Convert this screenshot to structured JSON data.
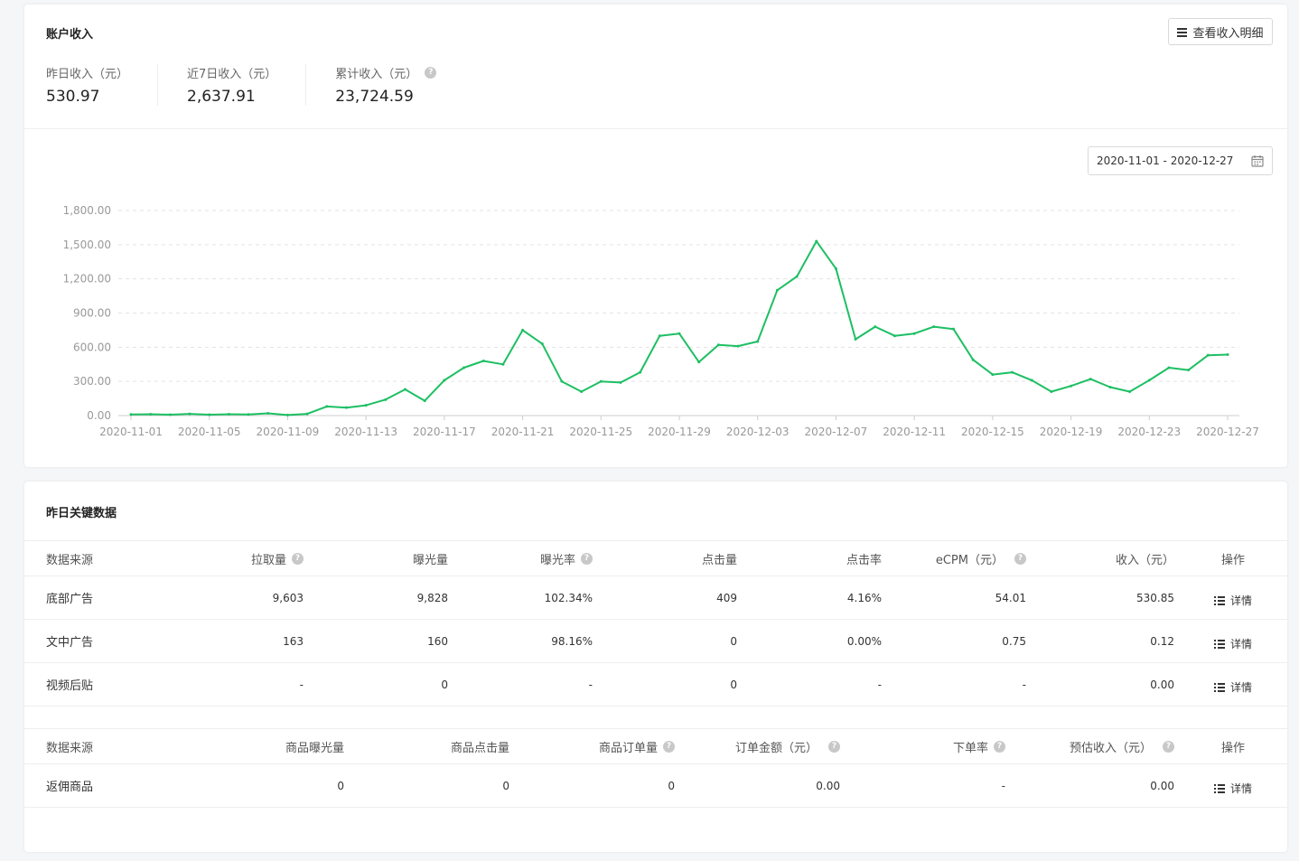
{
  "income": {
    "title": "账户收入",
    "detail_button": "查看收入明细",
    "stats": [
      {
        "label": "昨日收入（元）",
        "value": "530.97"
      },
      {
        "label": "近7日收入（元）",
        "value": "2,637.91"
      },
      {
        "label": "累计收入（元）",
        "value": "23,724.59"
      }
    ],
    "help_icon_glyph": "?",
    "date_range": "2020-11-01 - 2020-12-27"
  },
  "chart_data": {
    "type": "line",
    "x": [
      "2020-11-01",
      "2020-11-02",
      "2020-11-03",
      "2020-11-04",
      "2020-11-05",
      "2020-11-06",
      "2020-11-07",
      "2020-11-08",
      "2020-11-09",
      "2020-11-10",
      "2020-11-11",
      "2020-11-12",
      "2020-11-13",
      "2020-11-14",
      "2020-11-15",
      "2020-11-16",
      "2020-11-17",
      "2020-11-18",
      "2020-11-19",
      "2020-11-20",
      "2020-11-21",
      "2020-11-22",
      "2020-11-23",
      "2020-11-24",
      "2020-11-25",
      "2020-11-26",
      "2020-11-27",
      "2020-11-28",
      "2020-11-29",
      "2020-11-30",
      "2020-12-01",
      "2020-12-02",
      "2020-12-03",
      "2020-12-04",
      "2020-12-05",
      "2020-12-06",
      "2020-12-07",
      "2020-12-08",
      "2020-12-09",
      "2020-12-10",
      "2020-12-11",
      "2020-12-12",
      "2020-12-13",
      "2020-12-14",
      "2020-12-15",
      "2020-12-16",
      "2020-12-17",
      "2020-12-18",
      "2020-12-19",
      "2020-12-20",
      "2020-12-21",
      "2020-12-22",
      "2020-12-23",
      "2020-12-24",
      "2020-12-25",
      "2020-12-26",
      "2020-12-27"
    ],
    "series": [
      {
        "values": [
          10,
          12,
          8,
          15,
          8,
          12,
          10,
          20,
          5,
          15,
          80,
          70,
          90,
          140,
          230,
          130,
          310,
          420,
          480,
          450,
          750,
          630,
          300,
          210,
          300,
          290,
          380,
          700,
          720,
          470,
          620,
          610,
          650,
          1100,
          1220,
          1530,
          1290,
          670,
          780,
          700,
          720,
          780,
          760,
          490,
          360,
          380,
          310,
          210,
          260,
          320,
          250,
          210,
          310,
          420,
          400,
          530,
          535
        ]
      }
    ],
    "y_ticks": [
      "0.00",
      "300.00",
      "600.00",
      "900.00",
      "1,200.00",
      "1,500.00",
      "1,800.00"
    ],
    "x_ticks": [
      "2020-11-01",
      "2020-11-05",
      "2020-11-09",
      "2020-11-13",
      "2020-11-17",
      "2020-11-21",
      "2020-11-25",
      "2020-11-29",
      "2020-12-03",
      "2020-12-07",
      "2020-12-11",
      "2020-12-15",
      "2020-12-19",
      "2020-12-23",
      "2020-12-27"
    ],
    "ylim": [
      0,
      1800
    ],
    "grid": true,
    "line_color": "#1dbf63"
  },
  "key_data": {
    "title": "昨日关键数据",
    "ad_table": {
      "headers": [
        "数据来源",
        "拉取量",
        "曝光量",
        "曝光率",
        "点击量",
        "点击率",
        "eCPM（元）",
        "收入（元）",
        "操作"
      ],
      "rows": [
        {
          "source": "底部广告",
          "pull": "9,603",
          "expose": "9,828",
          "expose_rate": "102.34%",
          "clicks": "409",
          "ctr": "4.16%",
          "ecpm": "54.01",
          "income": "530.85",
          "action": "详情"
        },
        {
          "source": "文中广告",
          "pull": "163",
          "expose": "160",
          "expose_rate": "98.16%",
          "clicks": "0",
          "ctr": "0.00%",
          "ecpm": "0.75",
          "income": "0.12",
          "action": "详情"
        },
        {
          "source": "视频后贴",
          "pull": "-",
          "expose": "0",
          "expose_rate": "-",
          "clicks": "0",
          "ctr": "-",
          "ecpm": "-",
          "income": "0.00",
          "action": "详情"
        }
      ]
    },
    "goods_table": {
      "headers": [
        "数据来源",
        "商品曝光量",
        "商品点击量",
        "商品订单量",
        "订单金额（元）",
        "下单率",
        "预估收入（元）",
        "操作"
      ],
      "rows": [
        {
          "source": "返佣商品",
          "expose": "0",
          "clicks": "0",
          "orders": "0",
          "amount": "0.00",
          "order_rate": "-",
          "income": "0.00",
          "action": "详情"
        }
      ]
    }
  }
}
